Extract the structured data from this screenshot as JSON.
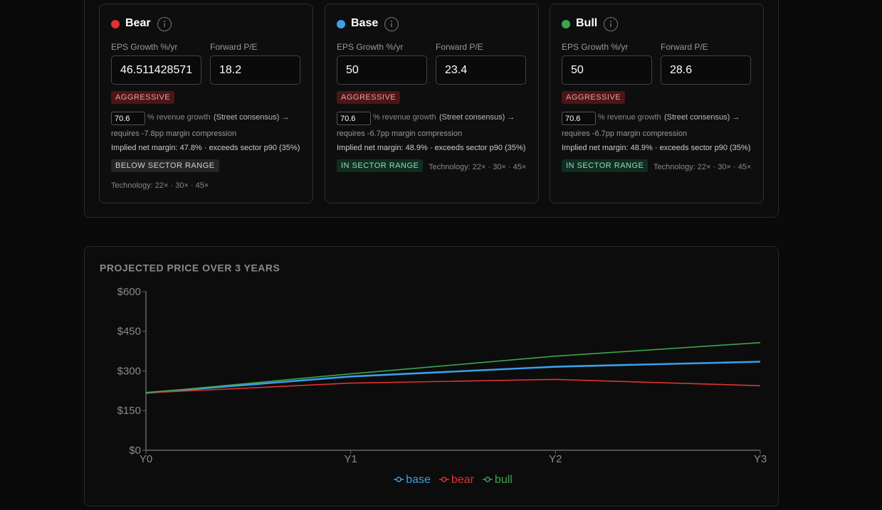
{
  "panel_scenarios": [
    {
      "name": "Bear",
      "color": "#e03131",
      "eps_label": "EPS Growth %/yr",
      "pe_label": "Forward P/E",
      "eps_value": "46.511428571",
      "pe_value": "18.2",
      "growth_badge": "AGGRESSIVE",
      "revenue_growth_input": "70.6",
      "revenue_growth_label": "% revenue growth",
      "consensus_label": "(Street consensus) →",
      "margin_note": "requires -7.8pp margin compression",
      "implied_margin": "Implied net margin: 47.8% · exceeds sector p90 (35%)",
      "sector_badge": "BELOW SECTOR RANGE",
      "sector_ranges": "Technology: 22× · 30× · 45×"
    },
    {
      "name": "Base",
      "color": "#3aa0e8",
      "eps_label": "EPS Growth %/yr",
      "pe_label": "Forward P/E",
      "eps_value": "50",
      "pe_value": "23.4",
      "growth_badge": "AGGRESSIVE",
      "revenue_growth_input": "70.6",
      "revenue_growth_label": "% revenue growth",
      "consensus_label": "(Street consensus) →",
      "margin_note": "requires -6.7pp margin compression",
      "implied_margin": "Implied net margin: 48.9% · exceeds sector p90 (35%)",
      "sector_badge": "IN SECTOR RANGE",
      "sector_ranges": "Technology: 22× · 30× · 45×"
    },
    {
      "name": "Bull",
      "color": "#3fa34d",
      "eps_label": "EPS Growth %/yr",
      "pe_label": "Forward P/E",
      "eps_value": "50",
      "pe_value": "28.6",
      "growth_badge": "AGGRESSIVE",
      "revenue_growth_input": "70.6",
      "revenue_growth_label": "% revenue growth",
      "consensus_label": "(Street consensus) →",
      "margin_note": "requires -6.7pp margin compression",
      "implied_margin": "Implied net margin: 48.9% · exceeds sector p90 (35%)",
      "sector_badge": "IN SECTOR RANGE",
      "sector_ranges": "Technology: 22× · 30× · 45×"
    }
  ],
  "chart_data": {
    "type": "line",
    "title": "PROJECTED PRICE OVER 3 YEARS",
    "categories": [
      "Y0",
      "Y1",
      "Y2",
      "Y3"
    ],
    "series": [
      {
        "name": "base",
        "color": "#3aa0e8",
        "values": [
          217,
          279,
          316,
          335
        ]
      },
      {
        "name": "bear",
        "color": "#e03131",
        "values": [
          217,
          254,
          268,
          244
        ]
      },
      {
        "name": "bull",
        "color": "#3fa34d",
        "values": [
          217,
          289,
          356,
          407
        ]
      }
    ],
    "ylim": [
      0,
      600
    ],
    "yticks": [
      {
        "value": 0,
        "label": "$0"
      },
      {
        "value": 150,
        "label": "$150"
      },
      {
        "value": 300,
        "label": "$300"
      },
      {
        "value": 450,
        "label": "$450"
      },
      {
        "value": 600,
        "label": "$600"
      }
    ]
  }
}
